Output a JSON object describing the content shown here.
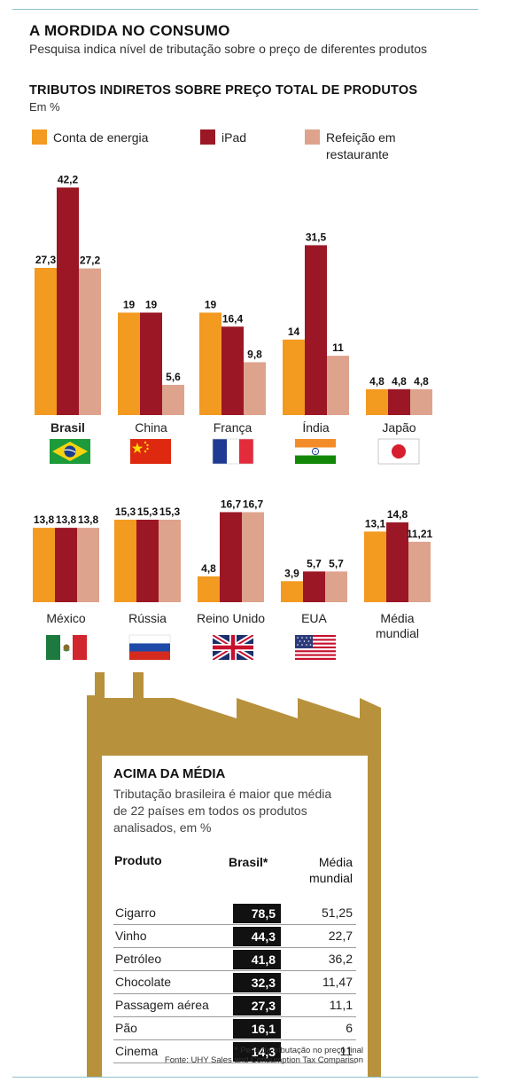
{
  "header": {
    "title": "A MORDIDA NO CONSUMO",
    "subtitle": "Pesquisa indica nível de tributação sobre o preço de diferentes produtos"
  },
  "section": {
    "title": "TRIBUTOS INDIRETOS SOBRE PREÇO TOTAL DE PRODUTOS",
    "unit": "Em %"
  },
  "legend": [
    {
      "label": "Conta de energia",
      "color": "#f39a21"
    },
    {
      "label": "iPad",
      "color": "#9c1725"
    },
    {
      "label": "Refeição em restaurante",
      "color": "#dea38c"
    }
  ],
  "chart_data": [
    {
      "type": "bar",
      "categories": [
        "Brasil",
        "China",
        "França",
        "Índia",
        "Japão"
      ],
      "series": [
        {
          "name": "Conta de energia",
          "values": [
            27.3,
            19,
            19,
            14,
            4.8
          ],
          "labels": [
            "27,3",
            "19",
            "19",
            "14",
            "4,8"
          ]
        },
        {
          "name": "iPad",
          "values": [
            42.2,
            19,
            16.4,
            31.5,
            4.8
          ],
          "labels": [
            "42,2",
            "19",
            "16,4",
            "31,5",
            "4,8"
          ]
        },
        {
          "name": "Refeição em restaurante",
          "values": [
            27.2,
            5.6,
            9.8,
            11,
            4.8
          ],
          "labels": [
            "27,2",
            "5,6",
            "9,8",
            "11",
            "4,8"
          ]
        }
      ],
      "flags": [
        "brazil-flag",
        "china-flag",
        "france-flag",
        "india-flag",
        "japan-flag"
      ]
    },
    {
      "type": "bar",
      "categories": [
        "México",
        "Rússia",
        "Reino Unido",
        "EUA",
        "Média mundial"
      ],
      "series": [
        {
          "name": "Conta de energia",
          "values": [
            13.8,
            15.3,
            4.8,
            3.9,
            13.1
          ],
          "labels": [
            "13,8",
            "15,3",
            "4,8",
            "3,9",
            "13,1"
          ]
        },
        {
          "name": "iPad",
          "values": [
            13.8,
            15.3,
            16.7,
            5.7,
            14.8
          ],
          "labels": [
            "13,8",
            "15,3",
            "16,7",
            "5,7",
            "14,8"
          ]
        },
        {
          "name": "Refeição em restaurante",
          "values": [
            13.8,
            15.3,
            16.7,
            5.7,
            11.21
          ],
          "labels": [
            "13,8",
            "15,3",
            "16,7",
            "5,7",
            "11,21"
          ]
        }
      ],
      "flags": [
        "mexico-flag",
        "russia-flag",
        "uk-flag",
        "usa-flag",
        ""
      ]
    },
    {
      "type": "table",
      "title": "ACIMA DA MÉDIA",
      "subtitle": "Tributação brasileira é maior que média de 22 países em todos os produtos analisados, em %",
      "columns": [
        "Produto",
        "Brasil*",
        "Média mundial"
      ],
      "rows": [
        {
          "produto": "Cigarro",
          "brasil": "78,5",
          "media": "51,25"
        },
        {
          "produto": "Vinho",
          "brasil": "44,3",
          "media": "22,7"
        },
        {
          "produto": "Petróleo",
          "brasil": "41,8",
          "media": "36,2"
        },
        {
          "produto": "Chocolate",
          "brasil": "32,3",
          "media": "11,47"
        },
        {
          "produto": "Passagem aérea",
          "brasil": "27,3",
          "media": "11,1"
        },
        {
          "produto": "Pão",
          "brasil": "16,1",
          "media": "6"
        },
        {
          "produto": "Cinema",
          "brasil": "14,3",
          "media": "11"
        }
      ],
      "footnote": "* Peso da tributação no preço final",
      "source": "Fonte: UHY Sales and Consumption Tax Comparison"
    }
  ],
  "colors": {
    "energia": "#f39a21",
    "ipad": "#9c1725",
    "refeicao": "#dea38c",
    "factory": "#b8913c",
    "rule": "#8fc0cf"
  }
}
